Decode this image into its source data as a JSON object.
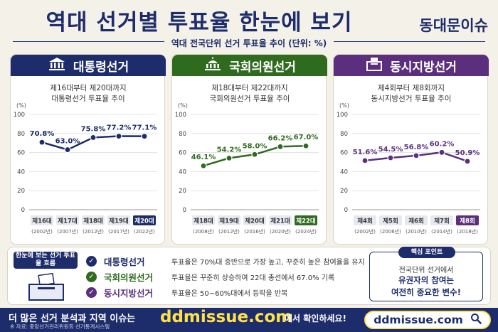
{
  "header": {
    "title": "역대 선거별 투표율 한눈에 보기",
    "brand": "동대문이슈",
    "subtitle": "역대 전국단위 선거 투표율 추이 (단위: %)"
  },
  "colors": {
    "navy": "#1d2c6b",
    "green": "#2f6b1f",
    "purple": "#5b2e7e",
    "yellow": "#ffe14a"
  },
  "chart_data": [
    {
      "type": "line",
      "title": "대통령선거",
      "description_line1": "제16대부터 제20대까지",
      "description_line2": "대통령선거 투표율 추이",
      "y_unit": "(%)",
      "ylim": [
        0,
        100
      ],
      "yticks": [
        0,
        20,
        40,
        60,
        80,
        100
      ],
      "grid": true,
      "color": "#1d2c6b",
      "categories": [
        "제16대",
        "제17대",
        "제18대",
        "제19대",
        "제20대"
      ],
      "years": [
        "(2002년)",
        "(2007년)",
        "(2012년)",
        "(2017년)",
        "(2022년)"
      ],
      "values": [
        70.8,
        63.0,
        75.8,
        77.2,
        77.1
      ],
      "value_labels": [
        "70.8%",
        "63.0%",
        "75.8%",
        "77.2%",
        "77.1%"
      ]
    },
    {
      "type": "line",
      "title": "국회의원선거",
      "description_line1": "제18대부터 제22대까지",
      "description_line2": "국회의원선거 투표율 추이",
      "y_unit": "(%)",
      "ylim": [
        0,
        100
      ],
      "yticks": [
        0,
        20,
        40,
        60,
        80,
        100
      ],
      "grid": true,
      "color": "#2f6b1f",
      "categories": [
        "제18대",
        "제19대",
        "제20대",
        "제21대",
        "제22대"
      ],
      "years": [
        "(2008년)",
        "(2012년)",
        "(2016년)",
        "(2020년)",
        "(2024년)"
      ],
      "values": [
        46.1,
        54.2,
        58.0,
        66.2,
        67.0
      ],
      "value_labels": [
        "46.1%",
        "54.2%",
        "58.0%",
        "66.2%",
        "67.0%"
      ]
    },
    {
      "type": "line",
      "title": "동시지방선거",
      "description_line1": "제4회부터 제8회까지",
      "description_line2": "동시지방선거 투표율 추이",
      "y_unit": "(%)",
      "ylim": [
        0,
        100
      ],
      "yticks": [
        0,
        20,
        40,
        60,
        80,
        100
      ],
      "grid": true,
      "color": "#5b2e7e",
      "categories": [
        "제4회",
        "제5회",
        "제6회",
        "제7회",
        "제8회"
      ],
      "years": [
        "(2002년)",
        "(2006년)",
        "(2010년)",
        "(2014년)",
        "(2018년)"
      ],
      "values": [
        51.6,
        54.5,
        56.8,
        60.2,
        50.9
      ],
      "value_labels": [
        "51.6%",
        "54.5%",
        "56.8%",
        "60.2%",
        "50.9%"
      ]
    }
  ],
  "summary": {
    "label": "한눈에 보는 선거 투표율 흐름",
    "items": [
      {
        "name": "대통령선거",
        "text": "투표율은 70%대 중반으로 가장 높고, 꾸준히 높은 참여율을 유지",
        "icon": "check-icon"
      },
      {
        "name": "국회의원선거",
        "text": "투표율은 꾸준히 상승하여 22대 총선에서 67.0% 기록",
        "icon": "check-icon"
      },
      {
        "name": "동시지방선거",
        "text": "투표율은 50~60%대에서 등락을 반복",
        "icon": "check-icon"
      }
    ]
  },
  "key_point": {
    "label": "핵심 포인트",
    "line1": "전국단위 선거에서",
    "line2": "유권자의 참여는",
    "line3": "여전히 중요한 변수!"
  },
  "footer": {
    "pre": "더 많은 선거 분석과 지역 이슈는",
    "url": "ddmissue.com",
    "post": "에서 확인하세요!",
    "source": "※ 자료: 중앙선거관리위원회 선거통계시스템",
    "search_url": "ddmissue.com"
  }
}
